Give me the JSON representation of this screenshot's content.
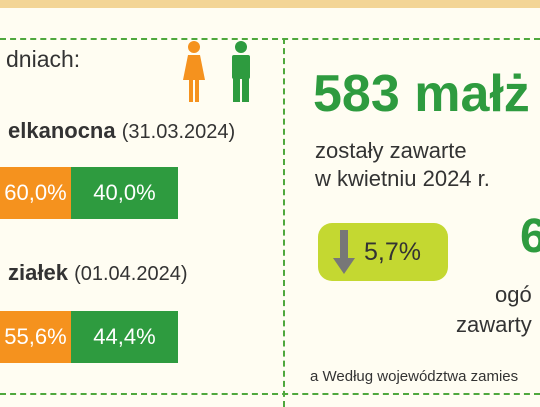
{
  "left": {
    "intro": "dniach:",
    "days": [
      {
        "name": "elkanocna",
        "date": "(31.03.2024)",
        "female": "60,0%",
        "male": "40,0%"
      },
      {
        "name": "ziałek",
        "date": "(01.04.2024)",
        "female": "55,6%",
        "male": "44,4%"
      }
    ]
  },
  "right": {
    "headline": "583 małż",
    "line1": "zostały zawarte",
    "line2": "w kwietniu 2024 r.",
    "change": "5,7%",
    "partial_number": "6",
    "partial_line1": "ogó",
    "partial_line2": "zawarty",
    "footnote": "a Według województwa zamies"
  },
  "colors": {
    "female": "#f5921e",
    "male": "#2e9b3f",
    "accent_green": "#2e9b3f",
    "pill": "#c4d831",
    "divider": "#4fa83d",
    "top_band": "#f3d596"
  },
  "icons": [
    "female-figure-icon",
    "male-figure-icon",
    "arrow-down-icon"
  ]
}
